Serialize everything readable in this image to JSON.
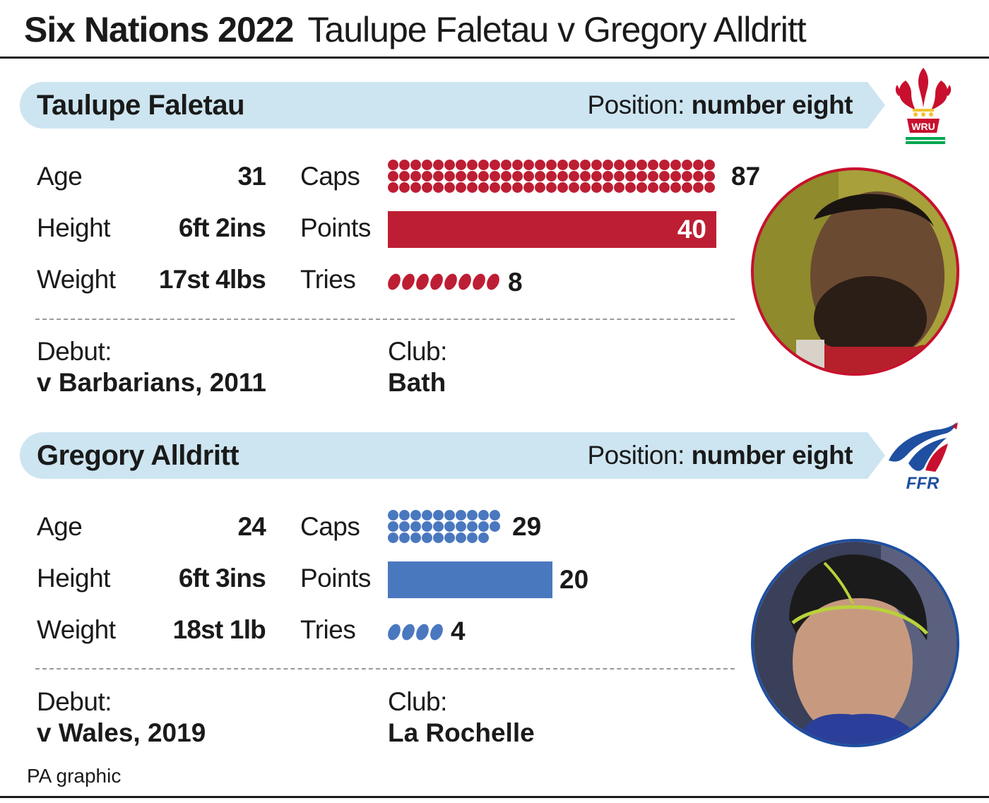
{
  "header": {
    "event": "Six Nations 2022",
    "matchup": "Taulupe Faletau v Gregory Alldritt"
  },
  "labels": {
    "age": "Age",
    "height": "Height",
    "weight": "Weight",
    "caps": "Caps",
    "points": "Points",
    "tries": "Tries",
    "debut": "Debut:",
    "club": "Club:",
    "position_prefix": "Position:"
  },
  "players": [
    {
      "name": "Taulupe Faletau",
      "position": "number eight",
      "age": "31",
      "height": "6ft 2ins",
      "weight": "17st 4lbs",
      "caps": 87,
      "points": 40,
      "tries": 8,
      "debut": "v Barbarians, 2011",
      "club": "Bath",
      "color": "#bd1e33",
      "logo_icon": "wru-feathers-icon",
      "logo_text": "WRU"
    },
    {
      "name": "Gregory Alldritt",
      "position": "number eight",
      "age": "24",
      "height": "6ft 3ins",
      "weight": "18st 1lb",
      "caps": 29,
      "points": 20,
      "tries": 4,
      "debut": "v Wales, 2019",
      "club": "La Rochelle",
      "color": "#4a78bf",
      "logo_icon": "ffr-cockerel-icon",
      "logo_text": "FFR"
    }
  ],
  "footer": {
    "source": "PA graphic"
  }
}
